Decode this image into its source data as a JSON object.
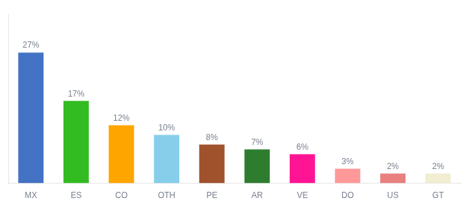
{
  "chart_data": {
    "type": "bar",
    "categories": [
      "MX",
      "ES",
      "CO",
      "OTH",
      "PE",
      "AR",
      "VE",
      "DO",
      "US",
      "GT"
    ],
    "values": [
      27,
      17,
      12,
      10,
      8,
      7,
      6,
      3,
      2,
      2
    ],
    "value_labels": [
      "27%",
      "17%",
      "12%",
      "10%",
      "8%",
      "7%",
      "6%",
      "3%",
      "2%",
      "2%"
    ],
    "colors": [
      "#4472C4",
      "#33BB22",
      "#FFA500",
      "#87CEEB",
      "#A0522D",
      "#2E7D2E",
      "#FF1493",
      "#FF9999",
      "#E88080",
      "#F0EDD0"
    ],
    "ylim": [
      0,
      35
    ],
    "grid": false,
    "data_labels": true,
    "tick_labels": "x"
  }
}
